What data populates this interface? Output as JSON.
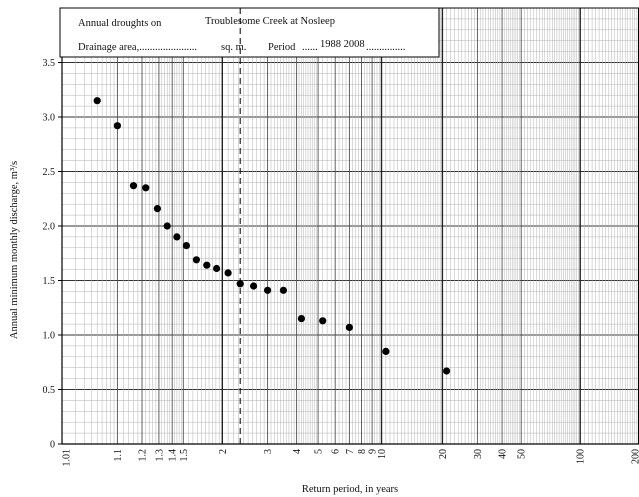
{
  "chart_data": {
    "type": "scatter",
    "title": "",
    "header": {
      "line1_label": "Annual droughts on",
      "line1_value": "Troublesome Creek at Nosleep",
      "drainage_label": "Drainage area,......................",
      "units_label": "sq. m.",
      "period_label": "Period",
      "period_value": "1988 2008",
      "period_dots_left": "......",
      "period_dots_right": "..............."
    },
    "xlabel": "Return period, in years",
    "ylabel": "Annual minimum monthly discharge, m³/s",
    "x_scale": "probability (Gumbel extreme-value)",
    "xlim": [
      1.01,
      200
    ],
    "ylim": [
      0,
      4
    ],
    "grid": true,
    "dashed_reference_x": 2.33,
    "x_ticks": [
      {
        "value": 1.01,
        "label": "1.01"
      },
      {
        "value": 1.1,
        "label": "1.1"
      },
      {
        "value": 1.2,
        "label": "1.2"
      },
      {
        "value": 1.3,
        "label": "1.3"
      },
      {
        "value": 1.4,
        "label": "1.4"
      },
      {
        "value": 1.5,
        "label": "1.5"
      },
      {
        "value": 2,
        "label": "2"
      },
      {
        "value": 3,
        "label": "3"
      },
      {
        "value": 4,
        "label": "4"
      },
      {
        "value": 5,
        "label": "5"
      },
      {
        "value": 6,
        "label": "6"
      },
      {
        "value": 7,
        "label": "7"
      },
      {
        "value": 8,
        "label": "8"
      },
      {
        "value": 9,
        "label": "9"
      },
      {
        "value": 10,
        "label": "10"
      },
      {
        "value": 20,
        "label": "20"
      },
      {
        "value": 30,
        "label": "30"
      },
      {
        "value": 40,
        "label": "40"
      },
      {
        "value": 50,
        "label": "50"
      },
      {
        "value": 100,
        "label": "100"
      },
      {
        "value": 200,
        "label": "200"
      }
    ],
    "y_ticks": [
      {
        "value": 0,
        "label": "0"
      },
      {
        "value": 0.5,
        "label": "0.5"
      },
      {
        "value": 1.0,
        "label": "1.0"
      },
      {
        "value": 1.5,
        "label": "1.5"
      },
      {
        "value": 2.0,
        "label": "2.0"
      },
      {
        "value": 2.5,
        "label": "2.5"
      },
      {
        "value": 3.0,
        "label": "3.0"
      },
      {
        "value": 3.5,
        "label": "3.5"
      }
    ],
    "series": [
      {
        "points": [
          {
            "x": 1.05,
            "y": 3.15
          },
          {
            "x": 1.1,
            "y": 2.92
          },
          {
            "x": 1.16,
            "y": 2.37
          },
          {
            "x": 1.22,
            "y": 2.35
          },
          {
            "x": 1.29,
            "y": 2.16
          },
          {
            "x": 1.36,
            "y": 2.0
          },
          {
            "x": 1.44,
            "y": 1.9
          },
          {
            "x": 1.53,
            "y": 1.82
          },
          {
            "x": 1.64,
            "y": 1.69
          },
          {
            "x": 1.77,
            "y": 1.64
          },
          {
            "x": 1.91,
            "y": 1.61
          },
          {
            "x": 2.1,
            "y": 1.57
          },
          {
            "x": 2.33,
            "y": 1.47
          },
          {
            "x": 2.63,
            "y": 1.45
          },
          {
            "x": 3.0,
            "y": 1.41
          },
          {
            "x": 3.5,
            "y": 1.41
          },
          {
            "x": 4.2,
            "y": 1.15
          },
          {
            "x": 5.25,
            "y": 1.13
          },
          {
            "x": 7.0,
            "y": 1.07
          },
          {
            "x": 10.5,
            "y": 0.85
          },
          {
            "x": 21.0,
            "y": 0.67
          }
        ]
      }
    ]
  }
}
